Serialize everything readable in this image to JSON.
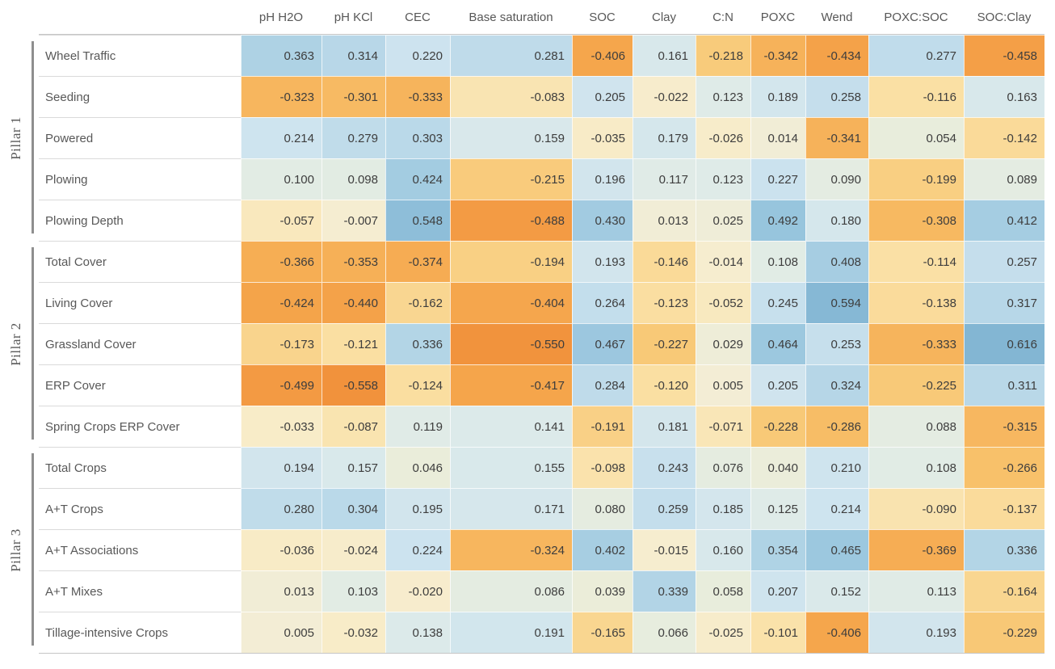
{
  "chart_data": {
    "type": "heatmap",
    "title": "",
    "columns": [
      "pH H2O",
      "pH KCl",
      "CEC",
      "Base saturation",
      "SOC",
      "Clay",
      "C:N",
      "POXC",
      "Wend",
      "POXC:SOC",
      "SOC:Clay"
    ],
    "value_format": "3 decimals",
    "legend": "none",
    "color_scale": {
      "negative_color": "#F08C38",
      "neutral_color": "#F4EDD4",
      "positive_color": "#82B5D3",
      "domain": [
        -0.6,
        0.62
      ],
      "observed_min": -0.558,
      "observed_max": 0.616
    },
    "row_groups": [
      {
        "label": "Pillar 1",
        "rows": [
          {
            "label": "Wheel Traffic",
            "values": [
              0.363,
              0.314,
              0.22,
              0.281,
              -0.406,
              0.161,
              -0.218,
              -0.342,
              -0.434,
              0.277,
              -0.458
            ]
          },
          {
            "label": "Seeding",
            "values": [
              -0.323,
              -0.301,
              -0.333,
              -0.083,
              0.205,
              -0.022,
              0.123,
              0.189,
              0.258,
              -0.116,
              0.163
            ]
          },
          {
            "label": "Powered",
            "values": [
              0.214,
              0.279,
              0.303,
              0.159,
              -0.035,
              0.179,
              -0.026,
              0.014,
              -0.341,
              0.054,
              -0.142
            ]
          },
          {
            "label": "Plowing",
            "values": [
              0.1,
              0.098,
              0.424,
              -0.215,
              0.196,
              0.117,
              0.123,
              0.227,
              0.09,
              -0.199,
              0.089
            ]
          },
          {
            "label": "Plowing Depth",
            "values": [
              -0.057,
              -0.007,
              0.548,
              -0.488,
              0.43,
              0.013,
              0.025,
              0.492,
              0.18,
              -0.308,
              0.412
            ]
          }
        ]
      },
      {
        "label": "Pillar 2",
        "rows": [
          {
            "label": "Total Cover",
            "values": [
              -0.366,
              -0.353,
              -0.374,
              -0.194,
              0.193,
              -0.146,
              -0.014,
              0.108,
              0.408,
              -0.114,
              0.257
            ]
          },
          {
            "label": "Living Cover",
            "values": [
              -0.424,
              -0.44,
              -0.162,
              -0.404,
              0.264,
              -0.123,
              -0.052,
              0.245,
              0.594,
              -0.138,
              0.317
            ]
          },
          {
            "label": "Grassland Cover",
            "values": [
              -0.173,
              -0.121,
              0.336,
              -0.55,
              0.467,
              -0.227,
              0.029,
              0.464,
              0.253,
              -0.333,
              0.616
            ]
          },
          {
            "label": "ERP Cover",
            "values": [
              -0.499,
              -0.558,
              -0.124,
              -0.417,
              0.284,
              -0.12,
              0.005,
              0.205,
              0.324,
              -0.225,
              0.311
            ]
          },
          {
            "label": "Spring Crops ERP Cover",
            "values": [
              -0.033,
              -0.087,
              0.119,
              0.141,
              -0.191,
              0.181,
              -0.071,
              -0.228,
              -0.286,
              0.088,
              -0.315
            ]
          }
        ]
      },
      {
        "label": "Pillar 3",
        "rows": [
          {
            "label": "Total Crops",
            "values": [
              0.194,
              0.157,
              0.046,
              0.155,
              -0.098,
              0.243,
              0.076,
              0.04,
              0.21,
              0.108,
              -0.266
            ]
          },
          {
            "label": "A+T Crops",
            "values": [
              0.28,
              0.304,
              0.195,
              0.171,
              0.08,
              0.259,
              0.185,
              0.125,
              0.214,
              -0.09,
              -0.137
            ]
          },
          {
            "label": "A+T Associations",
            "values": [
              -0.036,
              -0.024,
              0.224,
              -0.324,
              0.402,
              -0.015,
              0.16,
              0.354,
              0.465,
              -0.369,
              0.336
            ]
          },
          {
            "label": "A+T Mixes",
            "values": [
              0.013,
              0.103,
              -0.02,
              0.086,
              0.039,
              0.339,
              0.058,
              0.207,
              0.152,
              0.113,
              -0.164
            ]
          },
          {
            "label": "Tillage-intensive Crops",
            "values": [
              0.005,
              -0.032,
              0.138,
              0.191,
              -0.165,
              0.066,
              -0.025,
              -0.101,
              -0.406,
              0.193,
              -0.229
            ]
          }
        ]
      }
    ]
  }
}
